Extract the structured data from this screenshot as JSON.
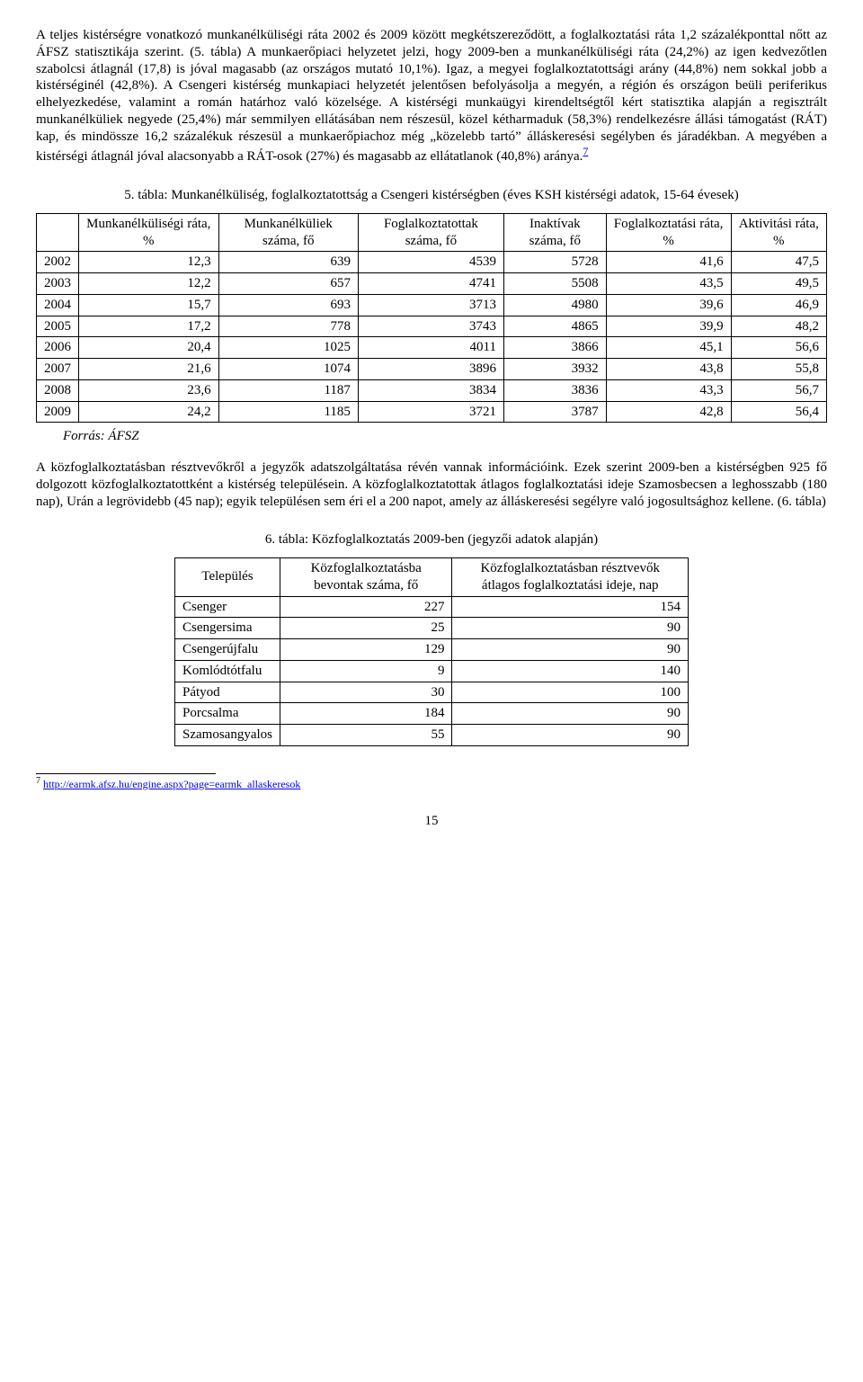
{
  "paragraph1": "A teljes kistérségre vonatkozó munkanélküliségi ráta 2002 és 2009 között megkétszereződött, a foglalkoztatási ráta 1,2 százalékponttal nőtt az ÁFSZ statisztikája szerint. (5. tábla) A munkaerőpiaci helyzetet jelzi, hogy 2009-ben a munkanélküliségi ráta (24,2%) az igen kedvezőtlen szabolcsi átlagnál (17,8) is jóval magasabb (az országos mutató 10,1%). Igaz, a megyei foglalkoztatottsági arány (44,8%) nem sokkal jobb a kistérséginél (42,8%). A Csengeri kistérség munkapiaci helyzetét jelentősen befolyásolja a megyén, a régión és országon beüli periferikus elhelyezkedése, valamint a román határhoz való közelsége. A kistérségi munkaügyi kirendeltségtől kért statisztika alapján a regisztrált munkanélküliek negyede (25,4%) már semmilyen ellátásában nem részesül, közel kétharmaduk (58,3%) rendelkezésre állási támogatást (RÁT) kap, és mindössze 16,2 százalékuk részesül a munkaerőpiachoz még „közelebb tartó” álláskeresési segélyben és járadékban. A megyében a kistérségi átlagnál jóval alacsonyabb a RÁT-osok (27%) és magasabb az ellátatlanok (40,8%) aránya.",
  "footref7": "7",
  "table5_caption": "5. tábla: Munkanélküliség, foglalkoztatottság a Csengeri kistérségben (éves KSH kistérségi adatok, 15-64 évesek)",
  "table5": {
    "headers": [
      "",
      "Munkanélküliségi ráta, %",
      "Munkanélküliek száma, fő",
      "Foglalkoztatottak száma, fő",
      "Inaktívak száma, fő",
      "Foglalkoztatási ráta, %",
      "Aktivitási ráta, %"
    ],
    "rows": [
      [
        "2002",
        "12,3",
        "639",
        "4539",
        "5728",
        "41,6",
        "47,5"
      ],
      [
        "2003",
        "12,2",
        "657",
        "4741",
        "5508",
        "43,5",
        "49,5"
      ],
      [
        "2004",
        "15,7",
        "693",
        "3713",
        "4980",
        "39,6",
        "46,9"
      ],
      [
        "2005",
        "17,2",
        "778",
        "3743",
        "4865",
        "39,9",
        "48,2"
      ],
      [
        "2006",
        "20,4",
        "1025",
        "4011",
        "3866",
        "45,1",
        "56,6"
      ],
      [
        "2007",
        "21,6",
        "1074",
        "3896",
        "3932",
        "43,8",
        "55,8"
      ],
      [
        "2008",
        "23,6",
        "1187",
        "3834",
        "3836",
        "43,3",
        "56,7"
      ],
      [
        "2009",
        "24,2",
        "1185",
        "3721",
        "3787",
        "42,8",
        "56,4"
      ]
    ]
  },
  "source_label": "Forrás: ÁFSZ",
  "paragraph2": "A közfoglalkoztatásban résztvevőkről a jegyzők adatszolgáltatása révén vannak információink. Ezek szerint 2009-ben a kistérségben 925 fő dolgozott közfoglalkoztatottként a kistérség településein. A közfoglalkoztatottak átlagos foglalkoztatási ideje Szamosbecsen a leghosszabb (180 nap), Urán a legrövidebb (45 nap); egyik településen sem éri el a 200 napot, amely az álláskeresési segélyre való jogosultsághoz kellene. (6. tábla)",
  "table6_caption": "6. tábla: Közfoglalkoztatás 2009-ben (jegyzői adatok alapján)",
  "table6": {
    "headers": [
      "Település",
      "Közfoglalkoztatásba bevontak száma, fő",
      "Közfoglalkoztatásban résztvevők átlagos foglalkoztatási ideje, nap"
    ],
    "rows": [
      [
        "Csenger",
        "227",
        "154"
      ],
      [
        "Csengersima",
        "25",
        "90"
      ],
      [
        "Csengerújfalu",
        "129",
        "90"
      ],
      [
        "Komlódtótfalu",
        "9",
        "140"
      ],
      [
        "Pátyod",
        "30",
        "100"
      ],
      [
        "Porcsalma",
        "184",
        "90"
      ],
      [
        "Szamosangyalos",
        "55",
        "90"
      ]
    ]
  },
  "footnote7_num": "7",
  "footnote7_url": "http://earmk.afsz.hu/engine.aspx?page=earmk_allaskeresok",
  "pagenum": "15"
}
